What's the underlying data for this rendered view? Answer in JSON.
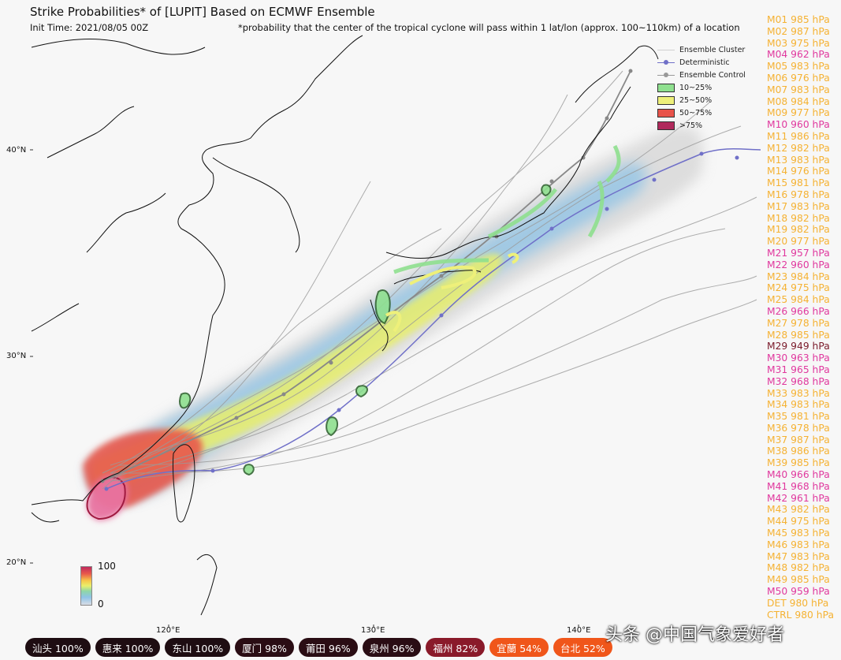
{
  "header": {
    "title": "Strike Probabilities* of [LUPIT] Based on ECMWF Ensemble",
    "init_time": "Init Time: 2021/08/05 00Z",
    "note": "*probability that the center of the tropical cyclone will pass within 1 lat/lon (approx. 100~110km) of a location"
  },
  "axes": {
    "lat_labels": [
      "40°N",
      "30°N",
      "20°N"
    ],
    "lon_labels": [
      "120°E",
      "130°E",
      "140°E"
    ]
  },
  "legend": {
    "ensemble_cluster": "Ensemble Cluster",
    "deterministic": "Deterministic",
    "ensemble_control": "Ensemble Control",
    "bins": [
      {
        "label": "10~25%",
        "color": "#8fe08f"
      },
      {
        "label": "25~50%",
        "color": "#eef07a"
      },
      {
        "label": "50~75%",
        "color": "#e8534a"
      },
      {
        "label": ">75%",
        "color": "#b0295c"
      }
    ]
  },
  "colorbar": {
    "max": "100",
    "min": "0"
  },
  "members": [
    {
      "label": "M01 985 hPa",
      "color": "#f5b233"
    },
    {
      "label": "M02 987 hPa",
      "color": "#f5b233"
    },
    {
      "label": "M03 975 hPa",
      "color": "#f5b233"
    },
    {
      "label": "M04 962 hPa",
      "color": "#e0389e"
    },
    {
      "label": "M05 983 hPa",
      "color": "#f5b233"
    },
    {
      "label": "M06 976 hPa",
      "color": "#f5b233"
    },
    {
      "label": "M07 983 hPa",
      "color": "#f5b233"
    },
    {
      "label": "M08 984 hPa",
      "color": "#f5b233"
    },
    {
      "label": "M09 977 hPa",
      "color": "#f5b233"
    },
    {
      "label": "M10 960 hPa",
      "color": "#e0389e"
    },
    {
      "label": "M11 986 hPa",
      "color": "#f5b233"
    },
    {
      "label": "M12 982 hPa",
      "color": "#f5b233"
    },
    {
      "label": "M13 983 hPa",
      "color": "#f5b233"
    },
    {
      "label": "M14 976 hPa",
      "color": "#f5b233"
    },
    {
      "label": "M15 981 hPa",
      "color": "#f5b233"
    },
    {
      "label": "M16 978 hPa",
      "color": "#f5b233"
    },
    {
      "label": "M17 983 hPa",
      "color": "#f5b233"
    },
    {
      "label": "M18 982 hPa",
      "color": "#f5b233"
    },
    {
      "label": "M19 982 hPa",
      "color": "#f5b233"
    },
    {
      "label": "M20 977 hPa",
      "color": "#f5b233"
    },
    {
      "label": "M21 957 hPa",
      "color": "#e0389e"
    },
    {
      "label": "M22 960 hPa",
      "color": "#e0389e"
    },
    {
      "label": "M23 984 hPa",
      "color": "#f5b233"
    },
    {
      "label": "M24 975 hPa",
      "color": "#f5b233"
    },
    {
      "label": "M25 984 hPa",
      "color": "#f5b233"
    },
    {
      "label": "M26 966 hPa",
      "color": "#e0389e"
    },
    {
      "label": "M27 978 hPa",
      "color": "#f5b233"
    },
    {
      "label": "M28 985 hPa",
      "color": "#f5b233"
    },
    {
      "label": "M29 949 hPa",
      "color": "#7a1a2a"
    },
    {
      "label": "M30 963 hPa",
      "color": "#e0389e"
    },
    {
      "label": "M31 965 hPa",
      "color": "#e0389e"
    },
    {
      "label": "M32 968 hPa",
      "color": "#e0389e"
    },
    {
      "label": "M33 983 hPa",
      "color": "#f5b233"
    },
    {
      "label": "M34 983 hPa",
      "color": "#f5b233"
    },
    {
      "label": "M35 981 hPa",
      "color": "#f5b233"
    },
    {
      "label": "M36 978 hPa",
      "color": "#f5b233"
    },
    {
      "label": "M37 987 hPa",
      "color": "#f5b233"
    },
    {
      "label": "M38 986 hPa",
      "color": "#f5b233"
    },
    {
      "label": "M39 985 hPa",
      "color": "#f5b233"
    },
    {
      "label": "M40 966 hPa",
      "color": "#e0389e"
    },
    {
      "label": "M41 968 hPa",
      "color": "#e0389e"
    },
    {
      "label": "M42 961 hPa",
      "color": "#e0389e"
    },
    {
      "label": "M43 982 hPa",
      "color": "#f5b233"
    },
    {
      "label": "M44 975 hPa",
      "color": "#f5b233"
    },
    {
      "label": "M45 983 hPa",
      "color": "#f5b233"
    },
    {
      "label": "M46 983 hPa",
      "color": "#f5b233"
    },
    {
      "label": "M47 983 hPa",
      "color": "#f5b233"
    },
    {
      "label": "M48 982 hPa",
      "color": "#f5b233"
    },
    {
      "label": "M49 985 hPa",
      "color": "#f5b233"
    },
    {
      "label": "M50 959 hPa",
      "color": "#e0389e"
    },
    {
      "label": "DET 980 hPa",
      "color": "#f5b233"
    },
    {
      "label": "CTRL 980 hPa",
      "color": "#f5b233"
    }
  ],
  "cities": [
    {
      "label": "汕头 100%",
      "color": "#1e0d12"
    },
    {
      "label": "惠来 100%",
      "color": "#1e0d12"
    },
    {
      "label": "东山 100%",
      "color": "#1e0d12"
    },
    {
      "label": "厦门 98%",
      "color": "#2a0d14"
    },
    {
      "label": "莆田 96%",
      "color": "#2a0d14"
    },
    {
      "label": "泉州 96%",
      "color": "#2a0d14"
    },
    {
      "label": "福州 82%",
      "color": "#8a1a2a"
    },
    {
      "label": "宜蘭 54%",
      "color": "#f0561a"
    },
    {
      "label": "台北 52%",
      "color": "#f0561a"
    }
  ],
  "watermark": "头条 @中国气象爱好者"
}
